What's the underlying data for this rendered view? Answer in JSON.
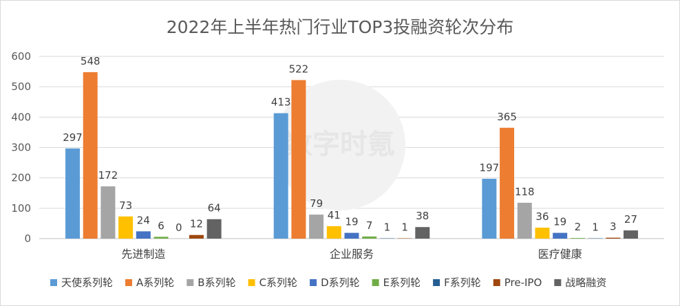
{
  "chart_data": {
    "type": "bar",
    "title": "2022年上半年热门行业TOP3投融资轮次分布",
    "xlabel": "",
    "ylabel": "",
    "ylim": [
      0,
      600
    ],
    "yticks": [
      0,
      100,
      200,
      300,
      400,
      500,
      600
    ],
    "grid": true,
    "legend_position": "bottom",
    "categories": [
      "先进制造",
      "企业服务",
      "医疗健康"
    ],
    "series": [
      {
        "name": "天使系列轮",
        "color": "#5b9bd5",
        "values": [
          297,
          413,
          197
        ]
      },
      {
        "name": "A系列轮",
        "color": "#ed7d31",
        "values": [
          548,
          522,
          365
        ]
      },
      {
        "name": "B系列轮",
        "color": "#a5a5a5",
        "values": [
          172,
          79,
          118
        ]
      },
      {
        "name": "C系列轮",
        "color": "#ffc000",
        "values": [
          73,
          41,
          36
        ]
      },
      {
        "name": "D系列轮",
        "color": "#4472c4",
        "values": [
          24,
          19,
          19
        ]
      },
      {
        "name": "E系列轮",
        "color": "#70ad47",
        "values": [
          6,
          7,
          2
        ]
      },
      {
        "name": "F系列轮",
        "color": "#255e91",
        "values": [
          0,
          1,
          1
        ]
      },
      {
        "name": "Pre-IPO",
        "color": "#9e480e",
        "values": [
          12,
          1,
          3
        ]
      },
      {
        "name": "战略融资",
        "color": "#636363",
        "values": [
          64,
          38,
          27
        ]
      }
    ],
    "watermark": "数字时氪"
  }
}
